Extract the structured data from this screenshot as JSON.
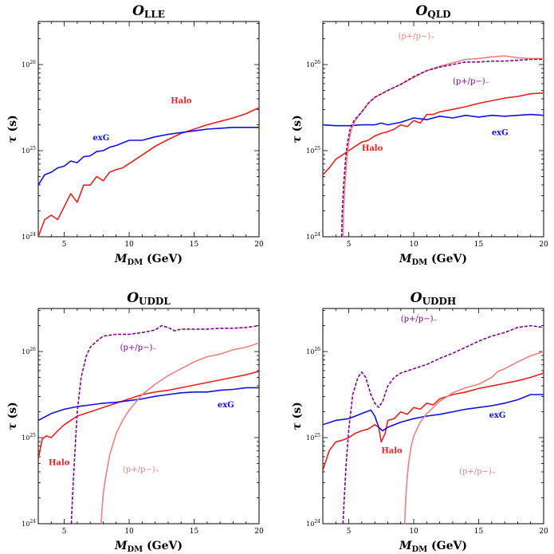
{
  "chart_data": [
    {
      "type": "line",
      "title": "O",
      "title_sub": "LLE",
      "xlabel": "M",
      "xlabel_sub": "DM",
      "xlabel_units": " (GeV)",
      "ylabel": "τ",
      "ylabel_units": " (s)",
      "xlim": [
        3,
        20
      ],
      "ylim_log10": [
        24,
        26.5
      ],
      "xticks": [
        "5",
        "10",
        "15",
        "20"
      ],
      "xtick_values": [
        5,
        10,
        15,
        20
      ],
      "yticks": [
        {
          "base": "10",
          "exp": "24",
          "value": 24
        },
        {
          "base": "10",
          "exp": "25",
          "value": 25
        },
        {
          "base": "10",
          "exp": "26",
          "value": 26
        }
      ],
      "legend": "none",
      "series": [
        {
          "name": "Halo",
          "color": "#e8201e",
          "dash": "solid",
          "x": [
            3.0,
            3.5,
            4.0,
            4.5,
            5.0,
            5.5,
            6.0,
            6.5,
            7.0,
            7.5,
            8.0,
            8.5,
            9.0,
            9.5,
            10.0,
            11.0,
            12.0,
            13.0,
            14.0,
            15.0,
            16.0,
            17.0,
            18.0,
            19.0,
            20.0
          ],
          "y": [
            24.0,
            24.2,
            24.25,
            24.2,
            24.35,
            24.5,
            24.4,
            24.6,
            24.6,
            24.7,
            24.65,
            24.75,
            24.78,
            24.8,
            24.85,
            24.95,
            25.05,
            25.13,
            25.2,
            25.25,
            25.3,
            25.34,
            25.38,
            25.43,
            25.5
          ],
          "label": "Halo",
          "label_pos": [
            13.2,
            25.55
          ]
        },
        {
          "name": "exG",
          "color": "#1010e0",
          "dash": "solid",
          "x": [
            3.0,
            3.5,
            4.0,
            4.5,
            5.0,
            5.5,
            6.0,
            6.5,
            7.0,
            7.5,
            8.0,
            8.5,
            9.0,
            10.0,
            11.0,
            12.0,
            13.0,
            14.0,
            15.0,
            16.0,
            17.0,
            18.0,
            19.0,
            20.0
          ],
          "y": [
            24.6,
            24.72,
            24.75,
            24.8,
            24.82,
            24.88,
            24.86,
            24.93,
            24.94,
            24.99,
            25.0,
            25.04,
            25.06,
            25.12,
            25.12,
            25.16,
            25.19,
            25.21,
            25.23,
            25.25,
            25.26,
            25.27,
            25.27,
            25.27
          ],
          "label": "exG",
          "label_pos": [
            7.2,
            25.12
          ]
        }
      ]
    },
    {
      "type": "line",
      "title": "O",
      "title_sub": "QLD",
      "xlabel": "M",
      "xlabel_sub": "DM",
      "xlabel_units": " (GeV)",
      "ylabel": "τ",
      "ylabel_units": " (s)",
      "xlim": [
        3,
        20
      ],
      "ylim_log10": [
        24,
        26.5
      ],
      "xticks": [
        "5",
        "10",
        "15",
        "20"
      ],
      "xtick_values": [
        5,
        10,
        15,
        20
      ],
      "yticks": [
        {
          "base": "10",
          "exp": "24",
          "value": 24
        },
        {
          "base": "10",
          "exp": "25",
          "value": 25
        },
        {
          "base": "10",
          "exp": "26",
          "value": 26
        }
      ],
      "legend": "none",
      "series": [
        {
          "name": "Halo",
          "color": "#e8201e",
          "dash": "solid",
          "x": [
            3.0,
            3.5,
            4.0,
            4.5,
            5.0,
            5.5,
            6.0,
            6.5,
            7.0,
            7.5,
            8.0,
            8.5,
            9.0,
            9.5,
            10.0,
            10.5,
            11.0,
            11.5,
            12.0,
            13.0,
            14.0,
            15.0,
            16.0,
            17.0,
            18.0,
            19.0,
            20.0
          ],
          "y": [
            24.72,
            24.8,
            24.9,
            24.95,
            25.0,
            25.05,
            25.1,
            25.12,
            25.17,
            25.2,
            25.22,
            25.25,
            25.3,
            25.28,
            25.35,
            25.32,
            25.42,
            25.42,
            25.45,
            25.48,
            25.51,
            25.55,
            25.58,
            25.61,
            25.63,
            25.66,
            25.67
          ],
          "label": "Halo",
          "label_pos": [
            6.0,
            25.0
          ]
        },
        {
          "name": "exG",
          "color": "#1010e0",
          "dash": "solid",
          "x": [
            3.0,
            4.0,
            5.0,
            6.0,
            7.0,
            7.5,
            8.0,
            9.0,
            10.0,
            11.0,
            12.0,
            13.0,
            14.0,
            15.0,
            16.0,
            17.0,
            18.0,
            19.0,
            20.0
          ],
          "y": [
            25.3,
            25.29,
            25.29,
            25.3,
            25.3,
            25.32,
            25.3,
            25.33,
            25.38,
            25.36,
            25.4,
            25.38,
            25.41,
            25.39,
            25.41,
            25.4,
            25.41,
            25.42,
            25.41
          ],
          "label": "exG",
          "label_pos": [
            16.0,
            25.18
          ]
        },
        {
          "name": "(p+/p−)₊",
          "color": "#f08080",
          "dash": "solid",
          "x": [
            4.55,
            4.6,
            4.7,
            4.85,
            5.0,
            5.2,
            5.5,
            6.0,
            6.5,
            7.0,
            8.0,
            9.0,
            10.0,
            11.0,
            12.0,
            13.0,
            14.0,
            15.0,
            16.0,
            17.0,
            18.0,
            19.0,
            20.0
          ],
          "y": [
            24.0,
            24.3,
            24.6,
            24.9,
            25.1,
            25.25,
            25.35,
            25.45,
            25.55,
            25.62,
            25.7,
            25.77,
            25.85,
            25.93,
            25.98,
            26.02,
            26.06,
            26.07,
            26.09,
            26.1,
            26.08,
            26.07,
            26.07
          ],
          "label": "(p+/p−)₊",
          "label_pos": [
            8.8,
            26.3
          ]
        },
        {
          "name": "(p+/p−)₋",
          "color": "#800090",
          "dash": "dashed",
          "x": [
            4.45,
            4.5,
            4.6,
            4.75,
            4.9,
            5.1,
            5.4,
            6.0,
            6.5,
            7.0,
            8.0,
            9.0,
            10.0,
            11.0,
            12.0,
            13.0,
            14.0,
            15.0,
            16.0,
            17.0,
            18.0,
            19.0,
            20.0
          ],
          "y": [
            24.0,
            24.3,
            24.6,
            24.9,
            25.1,
            25.25,
            25.35,
            25.45,
            25.55,
            25.62,
            25.7,
            25.77,
            25.86,
            25.93,
            25.97,
            26.0,
            26.03,
            26.03,
            26.04,
            26.04,
            26.05,
            26.06,
            26.06
          ],
          "label": "(p+/p−)₋",
          "label_pos": [
            13.0,
            25.78
          ]
        }
      ]
    },
    {
      "type": "line",
      "title": "O",
      "title_sub": "UDDL",
      "xlabel": "M",
      "xlabel_sub": "DM",
      "xlabel_units": " (GeV)",
      "ylabel": "τ",
      "ylabel_units": " (s)",
      "xlim": [
        3,
        20
      ],
      "ylim_log10": [
        24,
        26.5
      ],
      "xticks": [
        "5",
        "10",
        "15",
        "20"
      ],
      "xtick_values": [
        5,
        10,
        15,
        20
      ],
      "yticks": [
        {
          "base": "10",
          "exp": "24",
          "value": 24
        },
        {
          "base": "10",
          "exp": "25",
          "value": 25
        },
        {
          "base": "10",
          "exp": "26",
          "value": 26
        }
      ],
      "legend": "none",
      "series": [
        {
          "name": "Halo",
          "color": "#e8201e",
          "dash": "solid",
          "x": [
            3.0,
            3.3,
            3.6,
            4.0,
            4.5,
            5.0,
            5.5,
            6.0,
            7.0,
            8.0,
            9.0,
            10.0,
            11.0,
            12.0,
            13.0,
            14.0,
            15.0,
            16.0,
            17.0,
            18.0,
            19.0,
            20.0
          ],
          "y": [
            24.75,
            24.98,
            25.02,
            25.0,
            25.08,
            25.15,
            25.2,
            25.25,
            25.3,
            25.35,
            25.4,
            25.45,
            25.5,
            25.53,
            25.55,
            25.58,
            25.61,
            25.64,
            25.67,
            25.7,
            25.73,
            25.77
          ],
          "label": "Halo",
          "label_pos": [
            3.8,
            24.68
          ]
        },
        {
          "name": "exG",
          "color": "#1010e0",
          "dash": "solid",
          "x": [
            3.0,
            4.0,
            5.0,
            6.0,
            7.0,
            8.0,
            9.0,
            10.0,
            11.0,
            12.0,
            13.0,
            14.0,
            15.0,
            16.0,
            17.0,
            18.0,
            19.0,
            20.0
          ],
          "y": [
            25.2,
            25.28,
            25.33,
            25.36,
            25.38,
            25.4,
            25.41,
            25.43,
            25.45,
            25.48,
            25.5,
            25.52,
            25.53,
            25.53,
            25.55,
            25.56,
            25.58,
            25.58
          ],
          "label": "exG",
          "label_pos": [
            16.8,
            25.35
          ]
        },
        {
          "name": "(p+/p−)₊",
          "color": "#f08080",
          "dash": "solid",
          "x": [
            7.85,
            7.9,
            8.0,
            8.2,
            8.5,
            9.0,
            9.5,
            10.0,
            11.0,
            12.0,
            13.0,
            14.0,
            15.0,
            16.0,
            17.0,
            18.0,
            19.0,
            20.0
          ],
          "y": [
            24.0,
            24.15,
            24.35,
            24.55,
            24.8,
            25.05,
            25.2,
            25.32,
            25.5,
            25.62,
            25.72,
            25.8,
            25.88,
            25.94,
            25.97,
            26.02,
            26.05,
            26.1
          ],
          "label": "(p+/p−)₊",
          "label_pos": [
            9.5,
            24.6
          ]
        },
        {
          "name": "(p+/p−)₋",
          "color": "#800090",
          "dash": "dashed",
          "x": [
            5.55,
            5.6,
            5.7,
            5.85,
            6.0,
            6.3,
            6.7,
            7.0,
            7.5,
            8.0,
            9.0,
            10.0,
            11.0,
            12.0,
            12.5,
            13.0,
            13.5,
            14.0,
            15.0,
            16.0,
            17.0,
            18.0,
            19.0,
            20.0
          ],
          "y": [
            24.0,
            24.2,
            24.5,
            24.9,
            25.3,
            25.7,
            25.95,
            26.05,
            26.12,
            26.18,
            26.2,
            26.2,
            26.22,
            26.25,
            26.3,
            26.28,
            26.24,
            26.26,
            26.26,
            26.26,
            26.27,
            26.27,
            26.28,
            26.3
          ],
          "label": "(p+/p−)₋",
          "label_pos": [
            9.3,
            26.02
          ]
        }
      ]
    },
    {
      "type": "line",
      "title": "O",
      "title_sub": "UDDH",
      "xlabel": "M",
      "xlabel_sub": "DM",
      "xlabel_units": " (GeV)",
      "ylabel": "τ",
      "ylabel_units": " (s)",
      "xlim": [
        3,
        20
      ],
      "ylim_log10": [
        24,
        26.5
      ],
      "xticks": [
        "5",
        "10",
        "15",
        "20"
      ],
      "xtick_values": [
        5,
        10,
        15,
        20
      ],
      "yticks": [
        {
          "base": "10",
          "exp": "24",
          "value": 24
        },
        {
          "base": "10",
          "exp": "25",
          "value": 25
        },
        {
          "base": "10",
          "exp": "26",
          "value": 26
        }
      ],
      "legend": "none",
      "series": [
        {
          "name": "Halo",
          "color": "#e8201e",
          "dash": "solid",
          "x": [
            3.0,
            3.5,
            4.0,
            4.5,
            5.0,
            5.5,
            6.0,
            6.5,
            7.0,
            7.3,
            7.5,
            7.8,
            8.0,
            8.5,
            9.0,
            9.5,
            10.0,
            10.5,
            11.0,
            11.5,
            12.0,
            13.0,
            14.0,
            15.0,
            16.0,
            17.0,
            18.0,
            19.0,
            20.0
          ],
          "y": [
            24.62,
            24.85,
            24.95,
            24.97,
            25.0,
            25.05,
            25.08,
            25.1,
            25.15,
            25.12,
            24.95,
            25.05,
            25.2,
            25.22,
            25.3,
            25.27,
            25.35,
            25.33,
            25.4,
            25.38,
            25.45,
            25.5,
            25.53,
            25.57,
            25.6,
            25.63,
            25.66,
            25.7,
            25.75
          ],
          "label": "Halo",
          "label_pos": [
            7.5,
            24.82
          ]
        },
        {
          "name": "exG",
          "color": "#1010e0",
          "dash": "solid",
          "x": [
            3.0,
            4.0,
            5.0,
            6.0,
            6.7,
            7.0,
            7.3,
            7.6,
            8.0,
            9.0,
            10.0,
            11.0,
            12.0,
            13.0,
            14.0,
            15.0,
            16.0,
            17.0,
            18.0,
            19.0,
            20.0
          ],
          "y": [
            25.15,
            25.2,
            25.22,
            25.28,
            25.32,
            25.25,
            25.12,
            25.08,
            25.12,
            25.18,
            25.22,
            25.25,
            25.27,
            25.3,
            25.33,
            25.35,
            25.37,
            25.4,
            25.44,
            25.5,
            25.5
          ],
          "label": "exG",
          "label_pos": [
            15.8,
            25.23
          ]
        },
        {
          "name": "(p+/p−)₊",
          "color": "#f08080",
          "dash": "solid",
          "x": [
            9.3,
            9.35,
            9.45,
            9.6,
            9.8,
            10.0,
            10.5,
            11.0,
            12.0,
            13.0,
            14.0,
            15.0,
            16.0,
            16.5,
            17.0,
            18.0,
            19.0,
            20.0
          ],
          "y": [
            24.0,
            24.2,
            24.45,
            24.7,
            24.9,
            25.02,
            25.18,
            25.28,
            25.42,
            25.52,
            25.58,
            25.62,
            25.7,
            25.77,
            25.8,
            25.88,
            25.95,
            26.0
          ],
          "label": "(p+/p−)₊",
          "label_pos": [
            13.5,
            24.58
          ]
        },
        {
          "name": "(p+/p−)₋",
          "color": "#800090",
          "dash": "dashed",
          "x": [
            4.55,
            4.65,
            4.8,
            5.0,
            5.3,
            5.7,
            6.0,
            6.3,
            6.7,
            7.0,
            7.3,
            7.6,
            8.0,
            8.5,
            9.0,
            10.0,
            11.0,
            12.0,
            13.0,
            14.0,
            15.0,
            16.0,
            17.0,
            18.0,
            19.0,
            20.0
          ],
          "y": [
            24.0,
            24.3,
            24.7,
            25.1,
            25.5,
            25.7,
            25.76,
            25.7,
            25.5,
            25.4,
            25.35,
            25.42,
            25.6,
            25.7,
            25.75,
            25.8,
            25.85,
            25.92,
            25.98,
            26.05,
            26.12,
            26.18,
            26.22,
            26.28,
            26.3,
            26.28
          ],
          "label": "(p+/p−)₋",
          "label_pos": [
            9.0,
            26.35
          ]
        }
      ]
    }
  ]
}
